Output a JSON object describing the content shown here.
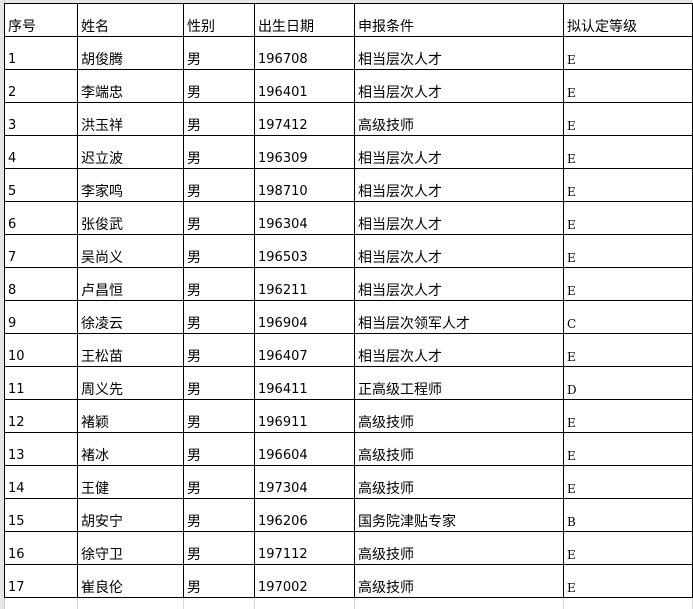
{
  "headers": [
    "序号",
    "姓名",
    "性别",
    "出生日期",
    "申报条件",
    "拟认定等级"
  ],
  "rows": [
    [
      "1",
      "胡俊腾",
      "男",
      "196708",
      "相当层次人才",
      "E"
    ],
    [
      "2",
      "李端忠",
      "男",
      "196401",
      "相当层次人才",
      "E"
    ],
    [
      "3",
      "洪玉祥",
      "男",
      "197412",
      "高级技师",
      "E"
    ],
    [
      "4",
      "迟立波",
      "男",
      "196309",
      "相当层次人才",
      "E"
    ],
    [
      "5",
      "李家鸣",
      "男",
      "198710",
      "相当层次人才",
      "E"
    ],
    [
      "6",
      "张俊武",
      "男",
      "196304",
      "相当层次人才",
      "E"
    ],
    [
      "7",
      "吴尚义",
      "男",
      "196503",
      "相当层次人才",
      "E"
    ],
    [
      "8",
      "卢昌恒",
      "男",
      "196211",
      "相当层次人才",
      "E"
    ],
    [
      "9",
      "徐凌云",
      "男",
      "196904",
      "相当层次领军人才",
      "C"
    ],
    [
      "10",
      "王松苗",
      "男",
      "196407",
      "相当层次人才",
      "E"
    ],
    [
      "11",
      "周义先",
      "男",
      "196411",
      "正高级工程师",
      "D"
    ],
    [
      "12",
      "褚颖",
      "男",
      "196911",
      "高级技师",
      "E"
    ],
    [
      "13",
      "褚冰",
      "男",
      "196604",
      "高级技师",
      "E"
    ],
    [
      "14",
      "王健",
      "男",
      "197304",
      "高级技师",
      "E"
    ],
    [
      "15",
      "胡安宁",
      "男",
      "196206",
      "国务院津贴专家",
      "B"
    ],
    [
      "16",
      "徐守卫",
      "男",
      "197112",
      "高级技师",
      "E"
    ],
    [
      "17",
      "崔良伦",
      "男",
      "197002",
      "高级技师",
      "E"
    ]
  ]
}
